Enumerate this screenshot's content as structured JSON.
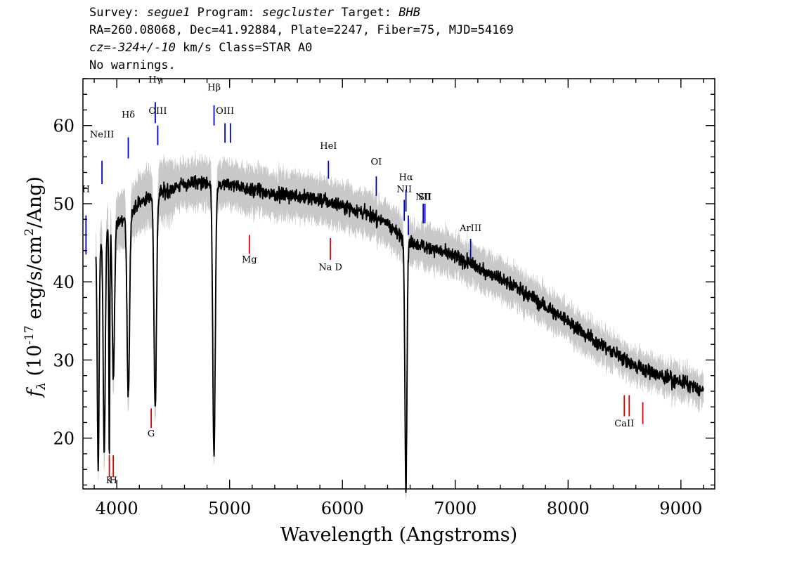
{
  "header": {
    "survey_label": "Survey:",
    "survey": "segue1",
    "program_label": "Program:",
    "program": "segcluster",
    "target_label": "Target:",
    "target": "BHB",
    "line2": "RA=260.08068, Dec=41.92884, Plate=2247, Fiber=75, MJD=54169",
    "cz_label": "cz=",
    "cz": "-324+/-10",
    "cz_suffix": "km/s Class=STAR A0",
    "warnings": "No warnings."
  },
  "chart_data": {
    "type": "line",
    "xlabel": "Wavelength (Angstroms)",
    "ylabel_prefix": "(10",
    "ylabel_exp": "-17",
    "ylabel_mid": " erg/s/cm",
    "ylabel_exp2": "2",
    "ylabel_suffix": "/Ang)",
    "xlim": [
      3700,
      9300
    ],
    "ylim": [
      13.5,
      66
    ],
    "xticks": [
      4000,
      5000,
      6000,
      7000,
      8000,
      9000
    ],
    "xtick_labels": [
      "4000",
      "5000",
      "6000",
      "7000",
      "8000",
      "9000"
    ],
    "yticks": [
      20,
      30,
      40,
      50,
      60
    ],
    "ytick_labels": [
      "20",
      "30",
      "40",
      "50",
      "60"
    ],
    "colors": {
      "flux": "#000000",
      "error_band": "#c8c8c8",
      "emission": "#0000cc",
      "absorption": "#dd0000"
    },
    "continuum": [
      [
        3820,
        44
      ],
      [
        3900,
        46
      ],
      [
        4000,
        47.5
      ],
      [
        4100,
        48.5
      ],
      [
        4200,
        50
      ],
      [
        4300,
        51
      ],
      [
        4400,
        51.5
      ],
      [
        4500,
        52
      ],
      [
        4600,
        52.5
      ],
      [
        4700,
        52.8
      ],
      [
        4800,
        52.5
      ],
      [
        4900,
        52.2
      ],
      [
        5000,
        52.5
      ],
      [
        5200,
        51.8
      ],
      [
        5400,
        51.2
      ],
      [
        5600,
        51.0
      ],
      [
        5800,
        50.5
      ],
      [
        6000,
        49.8
      ],
      [
        6200,
        48.8
      ],
      [
        6400,
        47.5
      ],
      [
        6550,
        45.3
      ],
      [
        6600,
        45.0
      ],
      [
        6800,
        44.3
      ],
      [
        7000,
        43.2
      ],
      [
        7200,
        41.8
      ],
      [
        7400,
        40.5
      ],
      [
        7600,
        38.8
      ],
      [
        7800,
        36.8
      ],
      [
        8000,
        35.0
      ],
      [
        8200,
        32.8
      ],
      [
        8400,
        31.0
      ],
      [
        8600,
        29.2
      ],
      [
        8800,
        28.0
      ],
      [
        9000,
        27.2
      ],
      [
        9200,
        26.0
      ]
    ],
    "absorption_features": [
      {
        "name": "H-zeta",
        "wavelength": 3889,
        "depth": 18,
        "width": 9
      },
      {
        "name": "H-eta",
        "wavelength": 3835,
        "depth": 16,
        "width": 8
      },
      {
        "name": "H-epsilon",
        "wavelength": 3970,
        "depth": 28,
        "width": 10
      },
      {
        "name": "H-delta",
        "wavelength": 4102,
        "depth": 25,
        "width": 11
      },
      {
        "name": "H-gamma",
        "wavelength": 4341,
        "depth": 24,
        "width": 11
      },
      {
        "name": "H-beta",
        "wavelength": 4862,
        "depth": 17.5,
        "width": 11
      },
      {
        "name": "H-alpha",
        "wavelength": 6563,
        "depth": 13.5,
        "width": 9
      },
      {
        "name": "Ca K",
        "wavelength": 3934,
        "depth": 17,
        "width": 4
      }
    ],
    "emission_lines": [
      {
        "label": "H",
        "wavelength": 3727,
        "label_y": 51.5,
        "y0": 43.5,
        "y1": 48.5
      },
      {
        "label": "NeIII",
        "wavelength": 3869,
        "label_y": 58.5,
        "y0": 52.5,
        "y1": 55.5
      },
      {
        "label": "Hδ",
        "wavelength": 4102,
        "label_y": 61,
        "y0": 55.8,
        "y1": 58.5
      },
      {
        "label": "Hγ",
        "wavelength": 4341,
        "label_y": 65.5,
        "y0": 60.3,
        "y1": 63.0
      },
      {
        "label": "OIII",
        "wavelength": 4363,
        "label_y": 61.5,
        "y0": 57.5,
        "y1": 60.0
      },
      {
        "label": "Hβ",
        "wavelength": 4862,
        "label_y": 64.5,
        "y0": 60.0,
        "y1": 62.6
      },
      {
        "label": "OIII",
        "wavelength": 4959,
        "label_y": 61.5,
        "y0": 57.8,
        "y1": 60.3
      },
      {
        "label": "",
        "wavelength": 5007,
        "label_y": 61.5,
        "y0": 57.8,
        "y1": 60.3
      },
      {
        "label": "HeI",
        "wavelength": 5876,
        "label_y": 57.0,
        "y0": 53.2,
        "y1": 55.5
      },
      {
        "label": "OI",
        "wavelength": 6300,
        "label_y": 55.0,
        "y0": 51.0,
        "y1": 53.5
      },
      {
        "label": "NII",
        "wavelength": 6548,
        "label_y": 51.5,
        "y0": 47.8,
        "y1": 50.5
      },
      {
        "label": "Hα",
        "wavelength": 6563,
        "label_y": 53.0,
        "y0": 49.0,
        "y1": 51.8
      },
      {
        "label": "",
        "wavelength": 6584,
        "label_y": 51.5,
        "y0": 46.0,
        "y1": 48.5
      },
      {
        "label": "NII",
        "wavelength": 6716,
        "label_y": 50.5,
        "y0": 47.5,
        "y1": 50.0
      },
      {
        "label": "SII",
        "wavelength": 6731,
        "label_y": 50.5,
        "y0": 47.5,
        "y1": 50.0
      },
      {
        "label": "ArIII",
        "wavelength": 7136,
        "label_y": 46.5,
        "y0": 43.0,
        "y1": 45.5
      }
    ],
    "absorption_lines": [
      {
        "label": "K",
        "wavelength": 3934,
        "label_y": 14.2,
        "y0": 15.0,
        "y1": 17.8
      },
      {
        "label": "H",
        "wavelength": 3969,
        "label_y": 14.2,
        "y0": 15.0,
        "y1": 17.8
      },
      {
        "label": "G",
        "wavelength": 4305,
        "label_y": 20.2,
        "y0": 21.3,
        "y1": 23.8
      },
      {
        "label": "Mg",
        "wavelength": 5175,
        "label_y": 42.5,
        "y0": 43.6,
        "y1": 46.0
      },
      {
        "label": "Na D",
        "wavelength": 5893,
        "label_y": 41.5,
        "y0": 42.8,
        "y1": 45.6
      },
      {
        "label": "CaII",
        "wavelength": 8498,
        "label_y": 21.5,
        "y0": 22.8,
        "y1": 25.5
      },
      {
        "label": "",
        "wavelength": 8542,
        "label_y": 21.5,
        "y0": 22.8,
        "y1": 25.5
      },
      {
        "label": "",
        "wavelength": 8662,
        "label_y": 21.5,
        "y0": 21.8,
        "y1": 24.6
      }
    ],
    "x_range_data": [
      3815,
      9200
    ]
  }
}
